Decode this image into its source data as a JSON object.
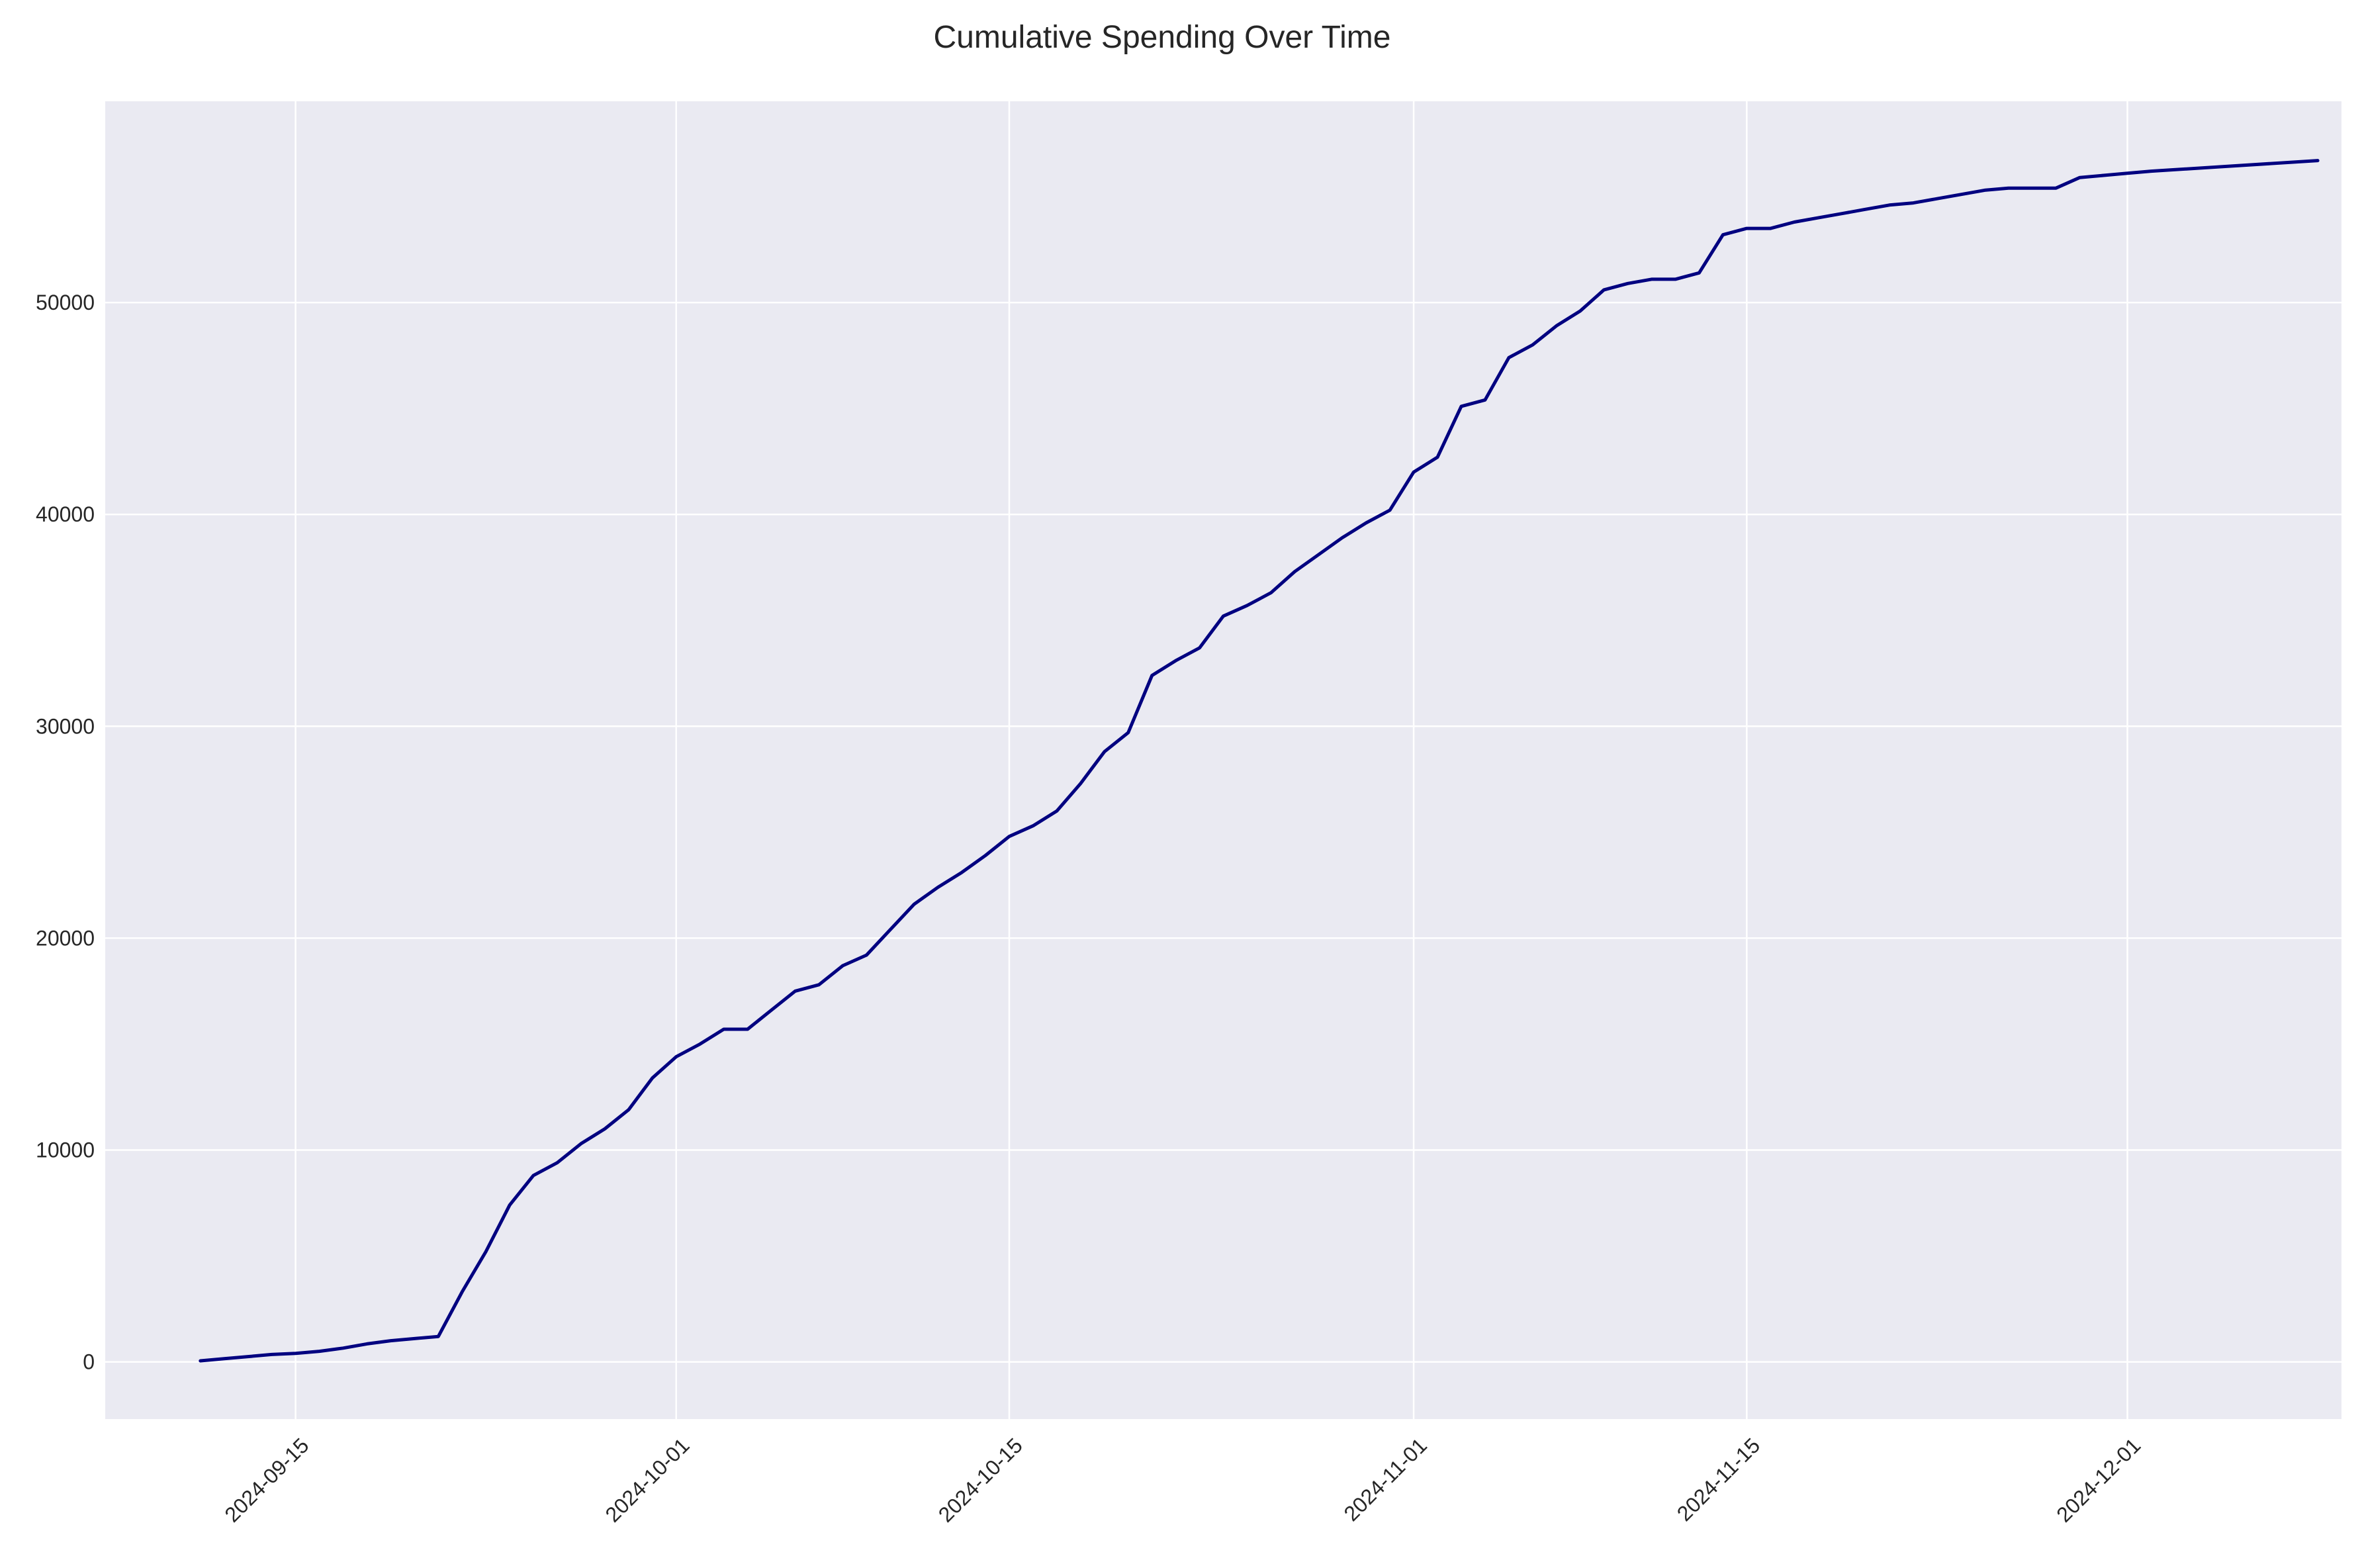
{
  "chart_data": {
    "type": "line",
    "title": "Cumulative Spending Over Time",
    "xlabel": "",
    "ylabel": "",
    "grid": true,
    "colors": {
      "background": "#eaeaf2",
      "grid": "#ffffff",
      "line": "#000080"
    },
    "x_range": [
      "2024-09-07",
      "2024-12-10"
    ],
    "ylim": [
      -2700,
      59500
    ],
    "x_ticks": [
      "2024-09-15",
      "2024-10-01",
      "2024-10-15",
      "2024-11-01",
      "2024-11-15",
      "2024-12-01"
    ],
    "y_ticks": [
      0,
      10000,
      20000,
      30000,
      40000,
      50000
    ],
    "series": [
      {
        "x": [
          "2024-09-11",
          "2024-09-12",
          "2024-09-13",
          "2024-09-14",
          "2024-09-15",
          "2024-09-16",
          "2024-09-17",
          "2024-09-18",
          "2024-09-19",
          "2024-09-20",
          "2024-09-21",
          "2024-09-22",
          "2024-09-23",
          "2024-09-24",
          "2024-09-25",
          "2024-09-26",
          "2024-09-27",
          "2024-09-28",
          "2024-09-29",
          "2024-09-30",
          "2024-10-01",
          "2024-10-02",
          "2024-10-03",
          "2024-10-04",
          "2024-10-05",
          "2024-10-06",
          "2024-10-07",
          "2024-10-08",
          "2024-10-09",
          "2024-10-10",
          "2024-10-11",
          "2024-10-12",
          "2024-10-13",
          "2024-10-14",
          "2024-10-15",
          "2024-10-16",
          "2024-10-17",
          "2024-10-18",
          "2024-10-19",
          "2024-10-20",
          "2024-10-21",
          "2024-10-22",
          "2024-10-23",
          "2024-10-24",
          "2024-10-25",
          "2024-10-26",
          "2024-10-27",
          "2024-10-28",
          "2024-10-29",
          "2024-10-30",
          "2024-10-31",
          "2024-11-01",
          "2024-11-02",
          "2024-11-03",
          "2024-11-04",
          "2024-11-05",
          "2024-11-06",
          "2024-11-07",
          "2024-11-08",
          "2024-11-09",
          "2024-11-10",
          "2024-11-11",
          "2024-11-12",
          "2024-11-13",
          "2024-11-14",
          "2024-11-15",
          "2024-11-16",
          "2024-11-17",
          "2024-11-18",
          "2024-11-19",
          "2024-11-20",
          "2024-11-21",
          "2024-11-22",
          "2024-11-23",
          "2024-11-24",
          "2024-11-25",
          "2024-11-26",
          "2024-11-27",
          "2024-11-28",
          "2024-11-29",
          "2024-11-30",
          "2024-12-01",
          "2024-12-02",
          "2024-12-09"
        ],
        "values": [
          50,
          150,
          250,
          350,
          400,
          500,
          650,
          850,
          1000,
          1100,
          1200,
          3300,
          5200,
          7400,
          8800,
          9400,
          10300,
          11000,
          11900,
          13400,
          14400,
          15000,
          15700,
          15700,
          16600,
          17500,
          17800,
          18700,
          19200,
          20400,
          21600,
          22400,
          23100,
          23900,
          24800,
          25300,
          26000,
          27300,
          28800,
          29700,
          32400,
          33100,
          33700,
          35200,
          35700,
          36300,
          37300,
          38100,
          38900,
          39600,
          40200,
          42000,
          42700,
          45100,
          45400,
          47400,
          48000,
          48900,
          49600,
          50600,
          50900,
          51100,
          51100,
          51400,
          53200,
          53500,
          53500,
          53800,
          54000,
          54200,
          54400,
          54600,
          54700,
          54900,
          55100,
          55300,
          55400,
          55400,
          55400,
          55900,
          56000,
          56100,
          56200,
          56700
        ]
      }
    ]
  }
}
